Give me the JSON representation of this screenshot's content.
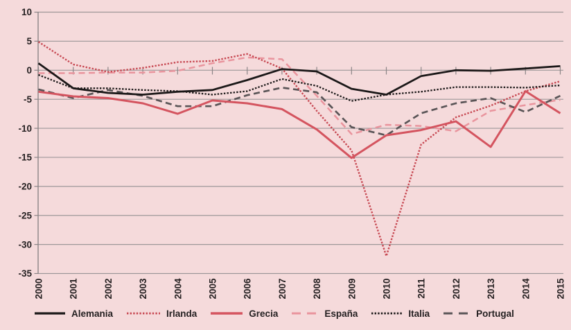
{
  "figure": {
    "background_color": "#f5dadb",
    "border_color": "#c23a4b",
    "gridline_color": "#9d9799",
    "axis_color": "#8a8486",
    "label_color": "#262122"
  },
  "chart_data": {
    "type": "line",
    "title": "",
    "xlabel": "",
    "ylabel": "",
    "x": [
      2000,
      2001,
      2002,
      2003,
      2004,
      2005,
      2006,
      2007,
      2008,
      2009,
      2010,
      2011,
      2012,
      2013,
      2014,
      2015
    ],
    "ylim": [
      -35,
      10
    ],
    "y_ticks": [
      10,
      5,
      0,
      -5,
      -10,
      -15,
      -20,
      -25,
      -30,
      -35
    ],
    "grid": true,
    "legend_position": "bottom",
    "series": [
      {
        "name": "Alemania",
        "style": "solid",
        "color": "#1b1818",
        "width": 2.8,
        "values": [
          1.2,
          -3.1,
          -3.9,
          -4.2,
          -3.7,
          -3.4,
          -1.7,
          0.2,
          -0.2,
          -3.2,
          -4.2,
          -1.0,
          0.0,
          -0.1,
          0.3,
          0.7
        ]
      },
      {
        "name": "Irlanda",
        "style": "dotted",
        "color": "#c74852",
        "width": 2.4,
        "values": [
          4.9,
          1.0,
          -0.3,
          0.4,
          1.4,
          1.6,
          2.8,
          0.3,
          -7.0,
          -13.8,
          -32.0,
          -12.8,
          -8.1,
          -6.1,
          -3.6,
          -1.9
        ]
      },
      {
        "name": "Grecia",
        "style": "solid",
        "color": "#d4545f",
        "width": 3.0,
        "values": [
          -3.7,
          -4.5,
          -4.8,
          -5.7,
          -7.5,
          -5.2,
          -5.7,
          -6.7,
          -10.2,
          -15.1,
          -11.2,
          -10.3,
          -8.8,
          -13.2,
          -3.6,
          -7.4
        ]
      },
      {
        "name": "España",
        "style": "dashed",
        "color": "#e9949d",
        "width": 2.5,
        "values": [
          -0.5,
          -0.5,
          -0.4,
          -0.4,
          -0.1,
          1.2,
          2.2,
          1.9,
          -4.4,
          -11.0,
          -9.4,
          -9.6,
          -10.5,
          -7.0,
          -6.0,
          -5.1
        ]
      },
      {
        "name": "Italia",
        "style": "dotted",
        "color": "#1b1818",
        "width": 2.3,
        "values": [
          -0.8,
          -3.1,
          -3.1,
          -3.4,
          -3.6,
          -4.2,
          -3.6,
          -1.5,
          -2.7,
          -5.3,
          -4.2,
          -3.7,
          -2.9,
          -2.9,
          -3.0,
          -2.6
        ]
      },
      {
        "name": "Portugal",
        "style": "dashed",
        "color": "#5a5557",
        "width": 2.7,
        "values": [
          -3.3,
          -4.8,
          -3.4,
          -4.4,
          -6.2,
          -6.2,
          -4.3,
          -3.0,
          -3.8,
          -9.8,
          -11.2,
          -7.4,
          -5.7,
          -4.8,
          -7.2,
          -4.4
        ]
      }
    ]
  }
}
